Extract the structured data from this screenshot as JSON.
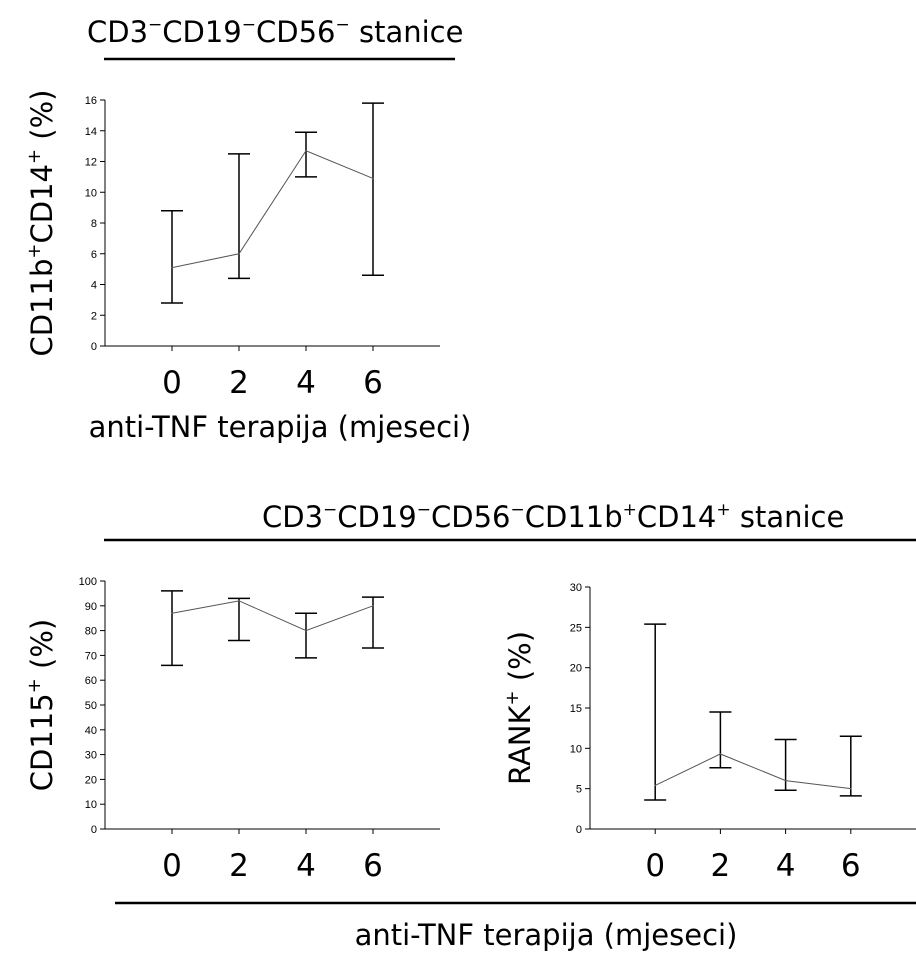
{
  "figure": {
    "top_title": {
      "prefix": "CD3",
      "p1": "−",
      "mid1": "CD19",
      "p2": "−",
      "mid2": "CD56",
      "p3": "−",
      "suffix": " stanice"
    },
    "bottom_title": {
      "a": "CD3",
      "as": "−",
      "b": "CD19",
      "bs": "−",
      "c": "CD56",
      "cs": "−",
      "d": "CD11b",
      "ds": "+",
      "e": "CD14",
      "es": "+",
      "suffix": "  stanice"
    },
    "top_xlabel": "anti-TNF terapija (mjeseci)",
    "bottom_xlabel": "anti-TNF terapija (mjeseci)"
  },
  "chart_data": [
    {
      "type": "line",
      "x": [
        0,
        2,
        4,
        6
      ],
      "xticks": [
        "0",
        "2",
        "4",
        "6"
      ],
      "xlim": [
        -2,
        8
      ],
      "ylim": [
        0,
        16
      ],
      "yticks": [
        0,
        2,
        4,
        6,
        8,
        10,
        12,
        14,
        16
      ],
      "ylabel": {
        "a": "CD11b",
        "as": "+",
        "b": "CD14",
        "bs": "+",
        "c": " (%)"
      },
      "series": [
        {
          "values": [
            5.1,
            6.0,
            12.7,
            10.9
          ],
          "err_low": [
            2.8,
            4.4,
            11.0,
            4.6
          ],
          "err_high": [
            8.8,
            12.5,
            13.9,
            15.8
          ]
        }
      ]
    },
    {
      "type": "line",
      "x": [
        0,
        2,
        4,
        6
      ],
      "xticks": [
        "0",
        "2",
        "4",
        "6"
      ],
      "xlim": [
        -2,
        8
      ],
      "ylim": [
        0,
        100
      ],
      "yticks": [
        0,
        10,
        20,
        30,
        40,
        50,
        60,
        70,
        80,
        90,
        100
      ],
      "ylabel": {
        "a": "CD115",
        "as": "+",
        "c": " (%)"
      },
      "series": [
        {
          "values": [
            87,
            92,
            80,
            90
          ],
          "err_low": [
            66,
            76,
            69,
            73
          ],
          "err_high": [
            96,
            93,
            87,
            93.5
          ]
        }
      ]
    },
    {
      "type": "line",
      "x": [
        0,
        2,
        4,
        6
      ],
      "xticks": [
        "0",
        "2",
        "4",
        "6"
      ],
      "xlim": [
        -2,
        8
      ],
      "ylim": [
        0,
        30
      ],
      "yticks": [
        0,
        5,
        10,
        15,
        20,
        25,
        30
      ],
      "ylabel": {
        "a": "RANK",
        "as": "+",
        "c": " (%)"
      },
      "series": [
        {
          "values": [
            5.4,
            9.3,
            6.0,
            5.0
          ],
          "err_low": [
            3.6,
            7.6,
            4.8,
            4.1
          ],
          "err_high": [
            25.4,
            14.5,
            11.1,
            11.5
          ]
        }
      ]
    }
  ]
}
